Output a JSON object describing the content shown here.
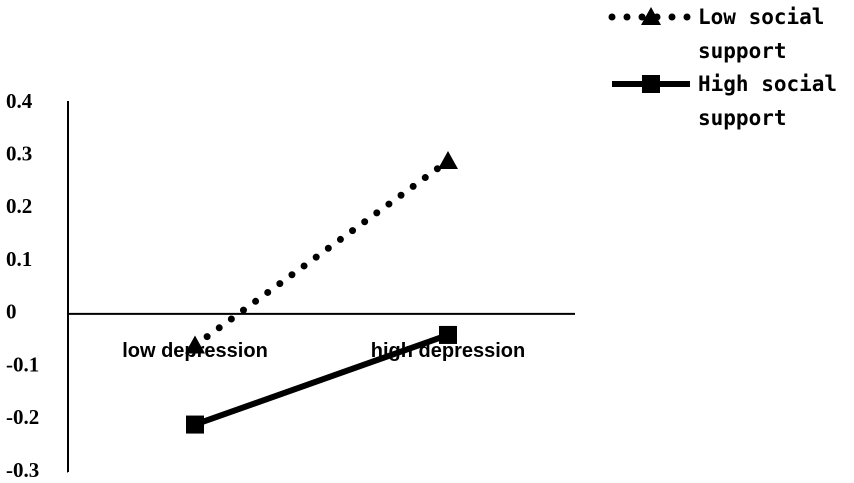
{
  "chart_data": {
    "type": "line",
    "categories": [
      "low depression",
      "high depression"
    ],
    "series": [
      {
        "name": "Low social support",
        "color": "#000000",
        "values": [
          -0.06,
          0.29
        ]
      },
      {
        "name": "High social support",
        "color": "#000000",
        "values": [
          -0.21,
          -0.04
        ]
      }
    ],
    "ylim": [
      -0.3,
      0.4
    ],
    "yticks": [
      -0.3,
      -0.2,
      -0.1,
      0,
      0.1,
      0.2,
      0.3,
      0.4
    ]
  }
}
